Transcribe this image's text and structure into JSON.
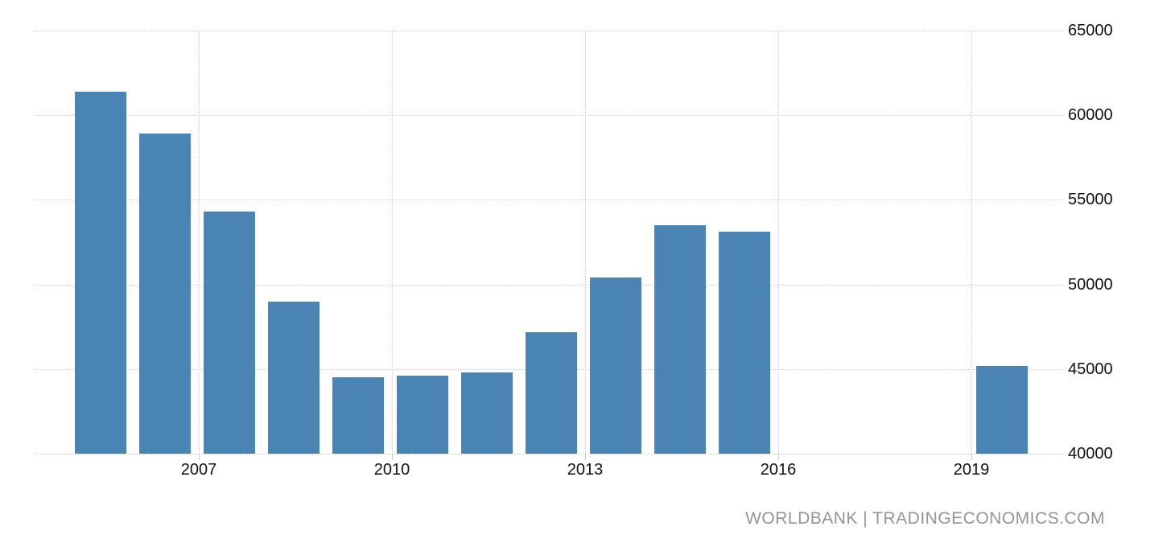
{
  "chart_data": {
    "type": "bar",
    "title": "",
    "xlabel": "",
    "ylabel": "",
    "x": [
      2005,
      2006,
      2007,
      2008,
      2009,
      2010,
      2011,
      2012,
      2013,
      2014,
      2015,
      2019
    ],
    "values": [
      61400,
      58900,
      54300,
      49000,
      44500,
      44600,
      44800,
      47200,
      50400,
      53500,
      53100,
      45200
    ],
    "ylim": [
      40000,
      65000
    ],
    "y_ticks": [
      65000,
      60000,
      55000,
      50000,
      45000,
      40000
    ],
    "x_ticks": [
      2007,
      2010,
      2013,
      2016,
      2019
    ],
    "y_axis_side": "right",
    "grid": "dotted",
    "legend": "none",
    "bar_color": "#4A84B4"
  },
  "colors": {
    "bar": "#4A84B4",
    "gridline": "#CFCFCF",
    "axis_label": "#111111",
    "watermark": "#949494"
  },
  "watermark": {
    "text": "WORLDBANK | TRADINGECONOMICS.COM"
  }
}
